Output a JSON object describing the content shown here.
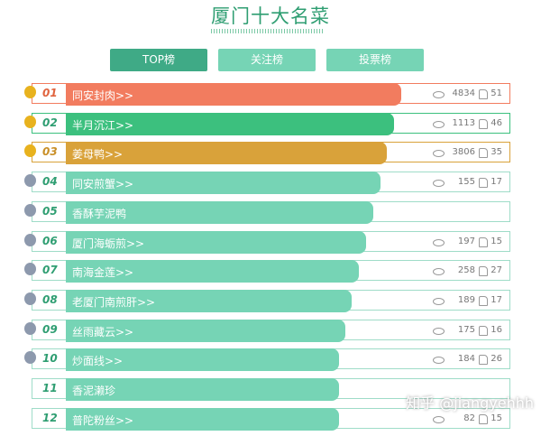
{
  "header": {
    "title": "厦门十大名菜"
  },
  "tabs": [
    "TOP榜",
    "关注榜",
    "投票榜"
  ],
  "rows": [
    {
      "rank": "01",
      "name": "同安封肉>>",
      "views": 4834,
      "likes": 51
    },
    {
      "rank": "02",
      "name": "半月沉江>>",
      "views": 1113,
      "likes": 46
    },
    {
      "rank": "03",
      "name": "姜母鸭>>",
      "views": 3806,
      "likes": 35
    },
    {
      "rank": "04",
      "name": "同安煎蟹>>",
      "views": 155,
      "likes": 17
    },
    {
      "rank": "05",
      "name": "香酥芋泥鸭"
    },
    {
      "rank": "06",
      "name": "厦门海蛎煎>>",
      "views": 197,
      "likes": 15
    },
    {
      "rank": "07",
      "name": "南海金莲>>",
      "views": 258,
      "likes": 27
    },
    {
      "rank": "08",
      "name": "老厦门南煎肝>>",
      "views": 189,
      "likes": 17
    },
    {
      "rank": "09",
      "name": "丝雨藏云>>",
      "views": 175,
      "likes": 16
    },
    {
      "rank": "10",
      "name": "炒面线>>",
      "views": 184,
      "likes": 26
    },
    {
      "rank": "11",
      "name": "香泥濑珍"
    },
    {
      "rank": "12",
      "name": "普陀粉丝>>",
      "views": 82,
      "likes": 15
    }
  ],
  "watermark": "知乎 @jiangyehhh"
}
